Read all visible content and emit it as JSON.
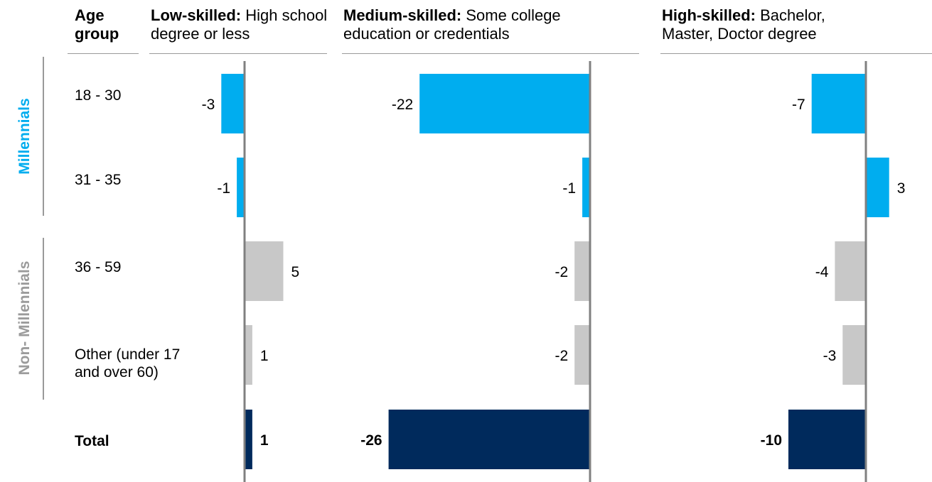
{
  "header": {
    "age_group": "Age\ngroup",
    "panels": [
      {
        "bold": "Low-skilled:",
        "rest": " High school degree or less"
      },
      {
        "bold": "Medium-skilled:",
        "rest": " Some college education or credentials"
      },
      {
        "bold": "High-skilled:",
        "rest": " Bachelor, Master, Doctor degree"
      }
    ]
  },
  "groups": [
    {
      "label": "Millennials",
      "color": "#00adef"
    },
    {
      "label": "Non- Millennials",
      "color": "#9b9b9b"
    }
  ],
  "rows": [
    {
      "label": "18 - 30",
      "group": 0
    },
    {
      "label": "31 - 35",
      "group": 0
    },
    {
      "label": "36 - 59",
      "group": 1
    },
    {
      "label": "Other (under 17\nand over 60)",
      "group": 1
    },
    {
      "label": "Total",
      "group": -1
    }
  ],
  "colors": {
    "millennials": "#00adef",
    "non_millennials": "#c8c8c8",
    "total": "#002a5c",
    "axis": "#808080"
  },
  "chart_data": {
    "type": "bar",
    "orientation": "horizontal",
    "categories": [
      "18 - 30",
      "31 - 35",
      "36 - 59",
      "Other (under 17 and over 60)",
      "Total"
    ],
    "series": [
      {
        "name": "Low-skilled: High school degree or less",
        "values": [
          -3,
          -1,
          5,
          1,
          1
        ]
      },
      {
        "name": "Medium-skilled: Some college education or credentials",
        "values": [
          -22,
          -1,
          -2,
          -2,
          -26
        ]
      },
      {
        "name": "High-skilled: Bachelor, Master, Doctor degree",
        "values": [
          -7,
          3,
          -4,
          -3,
          -10
        ]
      }
    ]
  }
}
